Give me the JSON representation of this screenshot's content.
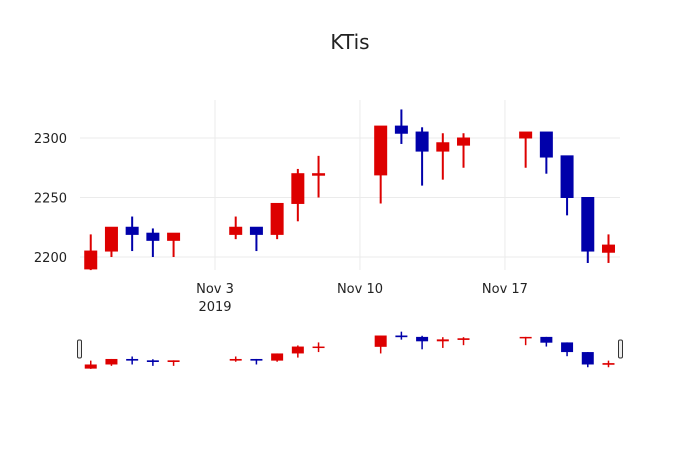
{
  "chart_data": {
    "type": "candlestick",
    "title": "KTis",
    "xlabel": "",
    "ylabel": "",
    "ylim": [
      2185,
      2335
    ],
    "yticks": [
      2200,
      2250,
      2300
    ],
    "xticks": [
      {
        "label": "Nov 3",
        "sublabel": "2019",
        "date": "2019-11-03"
      },
      {
        "label": "Nov 10",
        "sublabel": "",
        "date": "2019-11-10"
      },
      {
        "label": "Nov 17",
        "sublabel": "",
        "date": "2019-11-17"
      }
    ],
    "increasing_color": "#dd0000",
    "decreasing_color": "#0000aa",
    "grid": true,
    "rangeslider": true,
    "series": [
      {
        "date": "2019-10-28",
        "open": 2190,
        "high": 2219,
        "low": 2189,
        "close": 2205
      },
      {
        "date": "2019-10-29",
        "open": 2205,
        "high": 2225,
        "low": 2200,
        "close": 2225
      },
      {
        "date": "2019-10-30",
        "open": 2225,
        "high": 2234,
        "low": 2205,
        "close": 2219
      },
      {
        "date": "2019-10-31",
        "open": 2220,
        "high": 2224,
        "low": 2200,
        "close": 2214
      },
      {
        "date": "2019-11-01",
        "open": 2214,
        "high": 2220,
        "low": 2200,
        "close": 2220
      },
      {
        "date": "2019-11-04",
        "open": 2219,
        "high": 2234,
        "low": 2215,
        "close": 2225
      },
      {
        "date": "2019-11-05",
        "open": 2225,
        "high": 2225,
        "low": 2205,
        "close": 2219
      },
      {
        "date": "2019-11-06",
        "open": 2219,
        "high": 2245,
        "low": 2215,
        "close": 2245
      },
      {
        "date": "2019-11-07",
        "open": 2245,
        "high": 2274,
        "low": 2230,
        "close": 2270
      },
      {
        "date": "2019-11-08",
        "open": 2269,
        "high": 2285,
        "low": 2250,
        "close": 2270
      },
      {
        "date": "2019-11-11",
        "open": 2269,
        "high": 2310,
        "low": 2245,
        "close": 2310
      },
      {
        "date": "2019-11-12",
        "open": 2310,
        "high": 2324,
        "low": 2295,
        "close": 2304
      },
      {
        "date": "2019-11-13",
        "open": 2305,
        "high": 2309,
        "low": 2260,
        "close": 2289
      },
      {
        "date": "2019-11-14",
        "open": 2289,
        "high": 2304,
        "low": 2265,
        "close": 2296
      },
      {
        "date": "2019-11-15",
        "open": 2294,
        "high": 2304,
        "low": 2275,
        "close": 2300
      },
      {
        "date": "2019-11-18",
        "open": 2300,
        "high": 2305,
        "low": 2275,
        "close": 2305
      },
      {
        "date": "2019-11-19",
        "open": 2305,
        "high": 2305,
        "low": 2270,
        "close": 2284
      },
      {
        "date": "2019-11-20",
        "open": 2285,
        "high": 2285,
        "low": 2235,
        "close": 2250
      },
      {
        "date": "2019-11-21",
        "open": 2250,
        "high": 2250,
        "low": 2195,
        "close": 2205
      },
      {
        "date": "2019-11-22",
        "open": 2204,
        "high": 2219,
        "low": 2195,
        "close": 2210
      }
    ]
  }
}
